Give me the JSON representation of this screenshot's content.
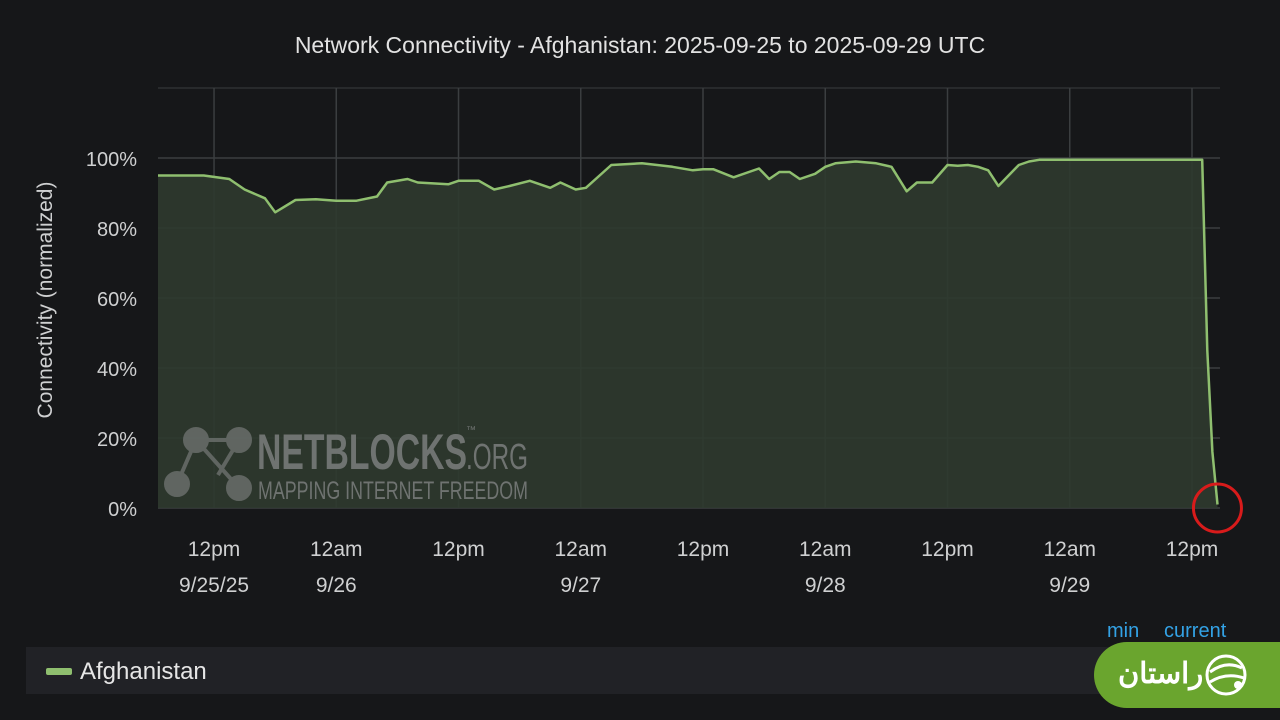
{
  "title": "Network Connectivity - Afghanistan: 2025-09-25 to 2025-09-29 UTC",
  "colors": {
    "background": "#161719",
    "grid": "#3b3e40",
    "series_line": "#8fbf6f",
    "series_fill": "#2f3a2f",
    "highlight_circle": "#d81b1b",
    "legend_header": "#33a2e5",
    "badge": "#6aa52e"
  },
  "watermark": {
    "brand": "NETBLOCKS",
    "suffix": ".ORG",
    "tm": "™",
    "tagline": "MAPPING INTERNET FREEDOM"
  },
  "legend": {
    "series_name": "Afghanistan",
    "headers": [
      "min",
      "current"
    ]
  },
  "badge": {
    "text": "راستان",
    "icon": "rastan-logo-icon"
  },
  "chart_data": {
    "type": "area",
    "ylabel": "Connectivity (normalized)",
    "xlabel": "",
    "ylim": [
      0,
      120
    ],
    "xlim": [
      "2025-09-25T06:30",
      "2025-09-29T14:45"
    ],
    "yticks": [
      0,
      20,
      40,
      60,
      80,
      100
    ],
    "ytick_labels": [
      "0%",
      "20%",
      "40%",
      "60%",
      "80%",
      "100%"
    ],
    "xticks": [
      {
        "time": "2025-09-25T12:00",
        "line1": "12pm",
        "line2": "9/25/25"
      },
      {
        "time": "2025-09-26T00:00",
        "line1": "12am",
        "line2": "9/26"
      },
      {
        "time": "2025-09-26T12:00",
        "line1": "12pm",
        "line2": ""
      },
      {
        "time": "2025-09-27T00:00",
        "line1": "12am",
        "line2": "9/27"
      },
      {
        "time": "2025-09-27T12:00",
        "line1": "12pm",
        "line2": ""
      },
      {
        "time": "2025-09-28T00:00",
        "line1": "12am",
        "line2": "9/28"
      },
      {
        "time": "2025-09-28T12:00",
        "line1": "12pm",
        "line2": ""
      },
      {
        "time": "2025-09-29T00:00",
        "line1": "12am",
        "line2": "9/29"
      },
      {
        "time": "2025-09-29T12:00",
        "line1": "12pm",
        "line2": ""
      }
    ],
    "grid": true,
    "series": [
      {
        "name": "Afghanistan",
        "x": [
          "2025-09-25T06:30",
          "2025-09-25T09:00",
          "2025-09-25T11:00",
          "2025-09-25T13:30",
          "2025-09-25T15:00",
          "2025-09-25T17:00",
          "2025-09-25T18:00",
          "2025-09-25T20:00",
          "2025-09-25T22:00",
          "2025-09-26T00:00",
          "2025-09-26T02:00",
          "2025-09-26T04:00",
          "2025-09-26T05:00",
          "2025-09-26T07:00",
          "2025-09-26T08:00",
          "2025-09-26T11:00",
          "2025-09-26T12:00",
          "2025-09-26T14:00",
          "2025-09-26T15:30",
          "2025-09-26T17:00",
          "2025-09-26T19:00",
          "2025-09-26T21:00",
          "2025-09-26T22:00",
          "2025-09-26T23:30",
          "2025-09-27T00:30",
          "2025-09-27T03:00",
          "2025-09-27T06:00",
          "2025-09-27T09:00",
          "2025-09-27T11:00",
          "2025-09-27T12:00",
          "2025-09-27T13:00",
          "2025-09-27T15:00",
          "2025-09-27T17:30",
          "2025-09-27T18:30",
          "2025-09-27T19:30",
          "2025-09-27T20:30",
          "2025-09-27T21:30",
          "2025-09-27T23:00",
          "2025-09-28T00:00",
          "2025-09-28T01:00",
          "2025-09-28T03:00",
          "2025-09-28T05:00",
          "2025-09-28T06:30",
          "2025-09-28T08:00",
          "2025-09-28T09:00",
          "2025-09-28T10:30",
          "2025-09-28T12:00",
          "2025-09-28T13:00",
          "2025-09-28T14:00",
          "2025-09-28T15:00",
          "2025-09-28T16:00",
          "2025-09-28T17:00",
          "2025-09-28T19:00",
          "2025-09-28T20:00",
          "2025-09-28T21:00",
          "2025-09-28T22:00",
          "2025-09-28T23:00",
          "2025-09-29T00:30",
          "2025-09-29T01:30",
          "2025-09-29T03:00",
          "2025-09-29T04:00",
          "2025-09-29T06:00",
          "2025-09-29T09:00",
          "2025-09-29T11:00",
          "2025-09-29T12:00",
          "2025-09-29T12:30",
          "2025-09-29T13:00",
          "2025-09-29T13:30",
          "2025-09-29T14:00",
          "2025-09-29T14:30"
        ],
        "values": [
          95,
          95,
          95,
          94,
          91,
          88.5,
          84.5,
          88,
          88.2,
          87.8,
          87.8,
          89,
          93,
          94,
          93,
          92.5,
          93.5,
          93.5,
          91,
          92,
          93.5,
          91.5,
          93,
          91,
          91.5,
          98,
          98.5,
          97.5,
          96.5,
          96.8,
          96.8,
          94.5,
          97,
          94,
          96,
          96,
          94,
          95.5,
          97.5,
          98.5,
          99,
          98.5,
          97.5,
          90.5,
          93,
          93,
          98,
          97.8,
          98,
          97.5,
          96.5,
          92,
          98,
          99,
          99.5,
          99.5,
          99.5,
          99.5,
          99.5,
          99.5,
          99.5,
          99.5,
          99.5,
          99.5,
          99.5,
          99.5,
          99.5,
          45,
          16,
          1
        ]
      }
    ],
    "annotations": [
      {
        "type": "circle",
        "x": "2025-09-29T14:30",
        "y": 0
      }
    ]
  }
}
